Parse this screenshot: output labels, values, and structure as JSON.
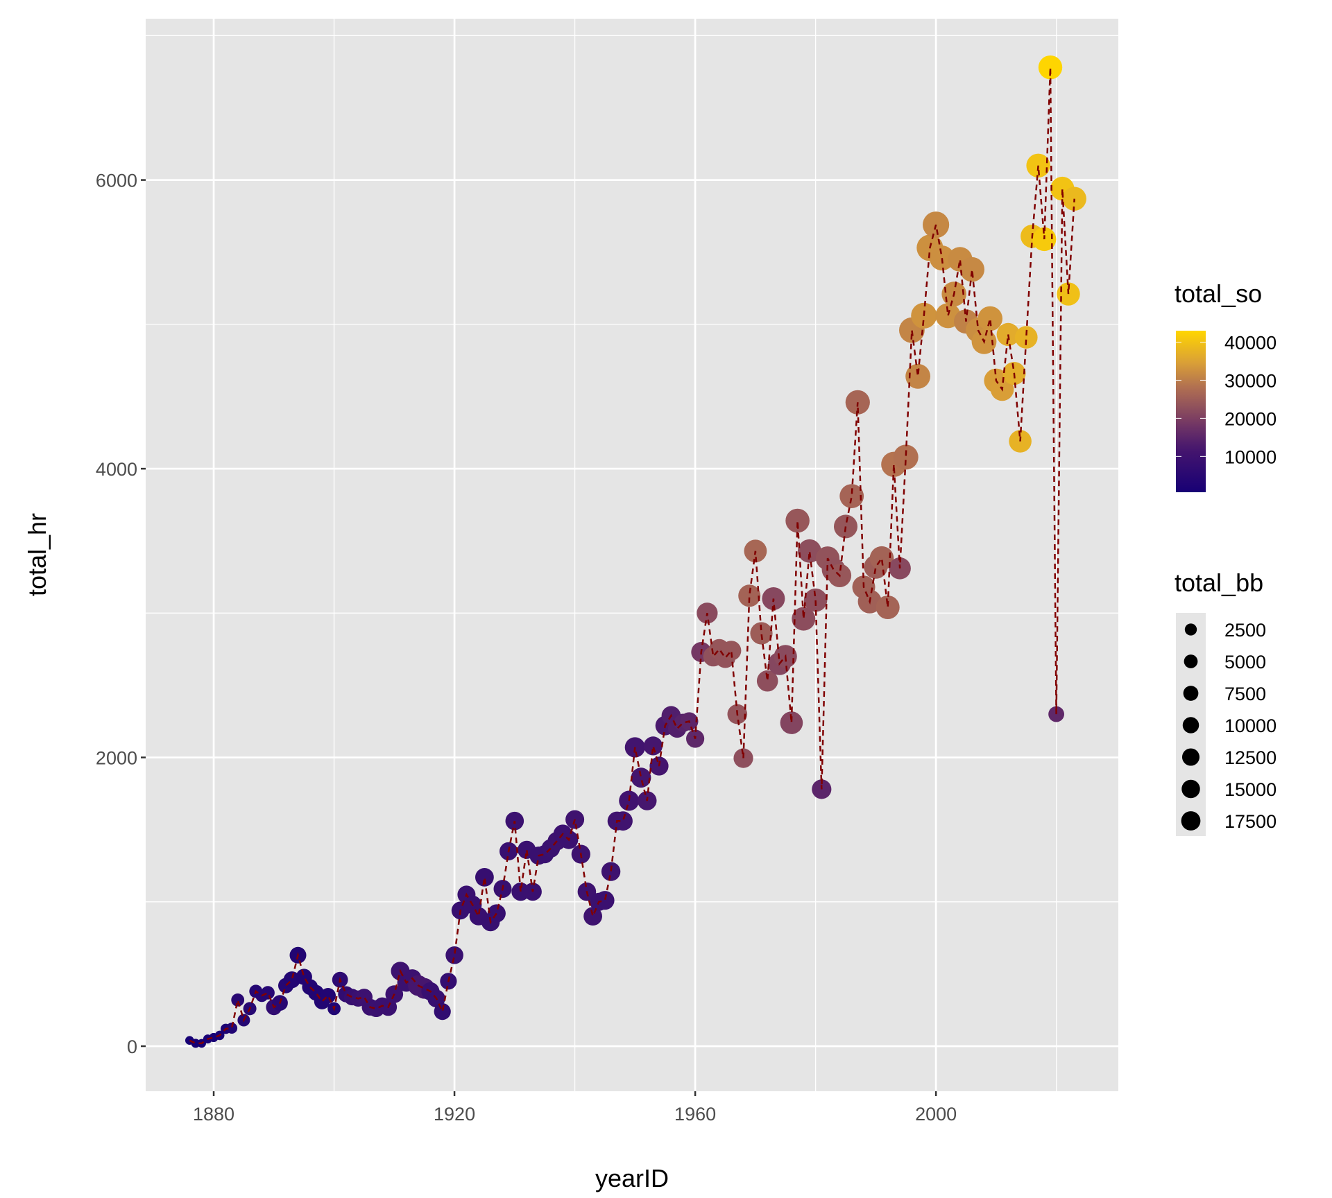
{
  "chart_data": {
    "type": "scatter",
    "title": "",
    "xlabel": "yearID",
    "ylabel": "total_hr",
    "xlim": [
      1868.7,
      2030.3
    ],
    "ylim": [
      -312,
      7117
    ],
    "x_ticks": [
      1880,
      1920,
      1960,
      2000
    ],
    "y_ticks": [
      0,
      2000,
      4000,
      6000
    ],
    "x_tick_labels": [
      "1880",
      "1920",
      "1960",
      "2000"
    ],
    "y_tick_labels": [
      "0",
      "2000",
      "4000",
      "6000"
    ],
    "grid": true,
    "line": {
      "style": "dashed",
      "color": "#800000"
    },
    "colors": {
      "panel": "#e5e5e5",
      "grid": "#ffffff"
    },
    "color_legend": {
      "title": "total_so",
      "breaks": [
        40000,
        30000,
        20000,
        10000
      ],
      "labels": [
        "40000",
        "30000",
        "20000",
        "10000"
      ],
      "range": [
        600,
        43000
      ],
      "stops": [
        [
          600,
          "#170075"
        ],
        [
          12000,
          "#46166e"
        ],
        [
          20000,
          "#7d3f62"
        ],
        [
          28000,
          "#b06f52"
        ],
        [
          35000,
          "#dca235"
        ],
        [
          43000,
          "#ffd600"
        ]
      ],
      "placement": "right"
    },
    "size_legend": {
      "title": "total_bb",
      "breaks": [
        2500,
        5000,
        7500,
        10000,
        12500,
        15000,
        17500
      ],
      "labels": [
        "2500",
        "5000",
        "7500",
        "10000",
        "12500",
        "15000",
        "17500"
      ],
      "placement": "right"
    },
    "start_year": 1876,
    "total_hr": [
      40,
      20,
      20,
      50,
      60,
      75,
      120,
      125,
      320,
      180,
      260,
      380,
      350,
      370,
      270,
      300,
      420,
      460,
      630,
      480,
      410,
      370,
      310,
      350,
      260,
      460,
      360,
      340,
      330,
      340,
      270,
      260,
      280,
      270,
      360,
      520,
      440,
      470,
      420,
      400,
      380,
      330,
      240,
      450,
      630,
      940,
      1050,
      980,
      900,
      1170,
      860,
      920,
      1090,
      1350,
      1560,
      1070,
      1360,
      1070,
      1320,
      1330,
      1370,
      1420,
      1470,
      1430,
      1570,
      1330,
      1070,
      900,
      1000,
      1010,
      1210,
      1560,
      1560,
      1700,
      2070,
      1860,
      1700,
      2080,
      1940,
      2220,
      2290,
      2200,
      2240,
      2250,
      2130,
      2730,
      3000,
      2700,
      2750,
      2690,
      2740,
      2300,
      1995,
      3120,
      3430,
      2860,
      2530,
      3100,
      2650,
      2700,
      2240,
      3640,
      2960,
      3430,
      3090,
      1780,
      3380,
      3300,
      3260,
      3600,
      3810,
      4460,
      3180,
      3080,
      3320,
      3380,
      3040,
      4030,
      3310,
      4080,
      4960,
      4640,
      5060,
      5530,
      5690,
      5460,
      5060,
      5210,
      5450,
      5020,
      5380,
      4960,
      4880,
      5040,
      4610,
      4550,
      4930,
      4660,
      4190,
      4910,
      5610,
      6100,
      5590,
      6780,
      2300,
      5940,
      5210,
      5870
    ],
    "total_so": [
      600,
      700,
      700,
      1000,
      1200,
      1300,
      2000,
      3000,
      5000,
      4000,
      4500,
      4000,
      4200,
      4300,
      7000,
      5000,
      4000,
      3500,
      3300,
      3300,
      3200,
      3100,
      3200,
      3200,
      3000,
      6000,
      7000,
      8000,
      9000,
      9500,
      9000,
      9200,
      9000,
      9000,
      9500,
      9800,
      9200,
      9500,
      12000,
      12000,
      8500,
      8300,
      6800,
      7600,
      8800,
      8400,
      8800,
      8500,
      8500,
      8000,
      8300,
      8200,
      8300,
      8600,
      9300,
      8800,
      9200,
      9000,
      8800,
      8900,
      9200,
      9800,
      9500,
      9400,
      10200,
      10100,
      9900,
      10100,
      9200,
      9100,
      9900,
      10400,
      10600,
      10700,
      11000,
      11600,
      12000,
      11800,
      11600,
      12600,
      13500,
      13800,
      14500,
      15200,
      15500,
      18700,
      22000,
      23000,
      23900,
      23400,
      23900,
      23500,
      22700,
      26000,
      26600,
      25000,
      22700,
      21500,
      21300,
      22000,
      21000,
      24000,
      22400,
      22500,
      22700,
      15000,
      23300,
      23200,
      24000,
      23800,
      26200,
      26400,
      25600,
      25500,
      25000,
      26000,
      26100,
      28600,
      21700,
      28200,
      31000,
      31000,
      33000,
      32500,
      31400,
      32400,
      32600,
      31800,
      31800,
      30600,
      31500,
      32200,
      32900,
      33000,
      34300,
      34500,
      36400,
      36700,
      37400,
      37400,
      38900,
      40100,
      41200,
      42800,
      15600,
      40000,
      39600,
      38500
    ],
    "total_bb": [
      600,
      700,
      600,
      700,
      800,
      1000,
      1500,
      2000,
      3500,
      3000,
      3600,
      3600,
      3200,
      3900,
      6000,
      6000,
      5500,
      7000,
      6800,
      6400,
      6000,
      6000,
      6000,
      5500,
      3500,
      6000,
      6200,
      6700,
      6300,
      7000,
      7000,
      7000,
      7000,
      7500,
      8000,
      9000,
      8500,
      8500,
      11500,
      11500,
      8500,
      8000,
      7000,
      7000,
      8000,
      8100,
      8200,
      8700,
      8400,
      8900,
      8800,
      8400,
      8300,
      8500,
      8800,
      8600,
      8500,
      8300,
      8500,
      8400,
      8700,
      8800,
      9000,
      9000,
      9000,
      9200,
      8800,
      8900,
      8500,
      9300,
      9400,
      9200,
      9700,
      10700,
      10900,
      10600,
      9600,
      9300,
      9300,
      9800,
      9500,
      8600,
      8400,
      8500,
      8500,
      10800,
      11700,
      10700,
      11000,
      10900,
      10400,
      10400,
      10000,
      13500,
      14300,
      13600,
      12200,
      14400,
      14400,
      14600,
      14100,
      16000,
      15400,
      15200,
      15100,
      10100,
      15600,
      15500,
      15000,
      15400,
      16300,
      16600,
      14500,
      15600,
      15700,
      16000,
      15500,
      18000,
      13000,
      17500,
      18400,
      17200,
      18800,
      20000,
      20000,
      17600,
      17800,
      17000,
      17000,
      16500,
      17000,
      17000,
      17300,
      17000,
      16400,
      15000,
      14700,
      14600,
      14000,
      14000,
      15000,
      15800,
      15700,
      15900,
      6000,
      15800,
      14800,
      15800
    ]
  }
}
